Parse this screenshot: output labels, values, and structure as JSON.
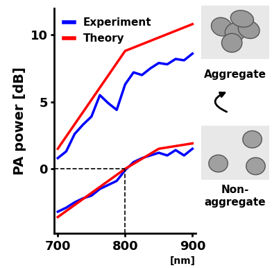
{
  "chart_data": {
    "type": "line",
    "x_label": "[nm]",
    "y_label": "PA power [dB]",
    "xlim": [
      695,
      905
    ],
    "xticks": [
      700,
      800,
      900
    ],
    "ylim": [
      -4.8,
      12
    ],
    "yticks": [
      0,
      5,
      10
    ],
    "legend": "upper left",
    "reference_point": [
      800,
      0
    ],
    "annotations": [
      "Aggregate",
      "Non-\naggregate"
    ],
    "series": [
      {
        "name": "Experiment",
        "color": "#0000ff",
        "group": "Aggregate",
        "x": [
          700,
          712.5,
          725,
          737.5,
          750,
          762.5,
          775,
          787.5,
          800,
          812.5,
          825,
          837.5,
          850,
          862.5,
          875,
          887.5,
          900
        ],
        "values": [
          0.8,
          1.3,
          2.6,
          3.3,
          3.9,
          5.5,
          4.9,
          4.4,
          6.3,
          7.2,
          7.0,
          7.5,
          7.9,
          7.8,
          8.2,
          8.1,
          8.6
        ]
      },
      {
        "name": "Theory",
        "color": "#ff0000",
        "group": "Aggregate",
        "x": [
          700,
          800,
          850,
          900
        ],
        "values": [
          1.5,
          8.8,
          9.8,
          10.8
        ]
      },
      {
        "name": "Experiment",
        "color": "#0000ff",
        "group": "Non-\naggregate",
        "x": [
          700,
          712.5,
          725,
          737.5,
          750,
          762.5,
          775,
          787.5,
          800,
          812.5,
          825,
          837.5,
          850,
          862.5,
          875,
          887.5,
          900
        ],
        "values": [
          -3.2,
          -2.9,
          -2.5,
          -2.2,
          -2.0,
          -1.5,
          -1.2,
          -0.9,
          -0.1,
          0.5,
          0.8,
          1.0,
          1.2,
          1.0,
          1.4,
          1.0,
          1.5
        ]
      },
      {
        "name": "Theory",
        "color": "#ff0000",
        "group": "Non-\naggregate",
        "x": [
          700,
          800,
          850,
          900
        ],
        "values": [
          -3.6,
          0.0,
          1.5,
          1.9
        ]
      }
    ]
  }
}
